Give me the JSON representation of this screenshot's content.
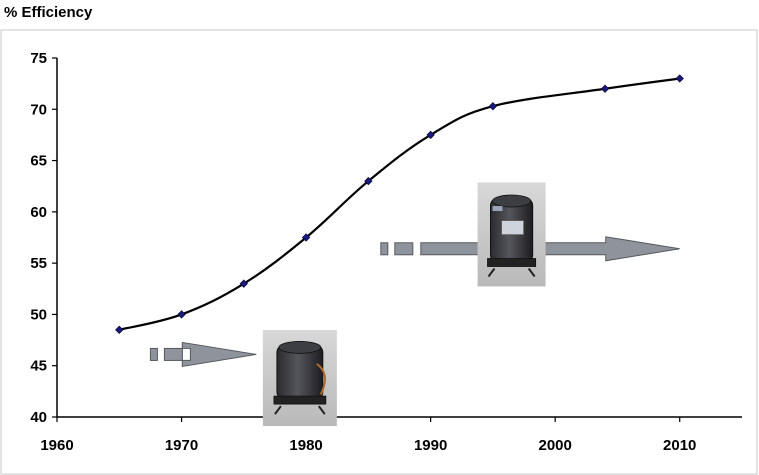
{
  "chart_data": {
    "type": "line",
    "title": "% Efficiency",
    "xlim": [
      1960,
      2015
    ],
    "ylim": [
      40,
      75
    ],
    "x_ticks": [
      1960,
      1970,
      1980,
      1990,
      2000,
      2010
    ],
    "y_ticks": [
      40,
      45,
      50,
      55,
      60,
      65,
      70,
      75
    ],
    "grid": false,
    "series": [
      {
        "x": [
          1965,
          1970,
          1975,
          1980,
          1985,
          1990,
          1995,
          2004,
          2010
        ],
        "y": [
          48.5,
          50.0,
          53.0,
          57.5,
          63.0,
          67.5,
          70.3,
          72.0,
          73.0
        ]
      }
    ],
    "arrows": [
      {
        "x_start": 1967.5,
        "x_end": 1976,
        "y": 46.1
      },
      {
        "x_start": 1986,
        "x_end": 2010,
        "y": 56.4
      }
    ],
    "images": [
      {
        "name": "compressor-photo-old",
        "x_center": 1979.5,
        "y_center": 43.8
      },
      {
        "name": "compressor-photo-new",
        "x_center": 1996.5,
        "y_center": 57.8
      }
    ],
    "colors": {
      "line": "#000000",
      "marker": "#1a1a80",
      "arrow_fill": "#8f949c",
      "arrow_stroke": "#55595f"
    }
  }
}
